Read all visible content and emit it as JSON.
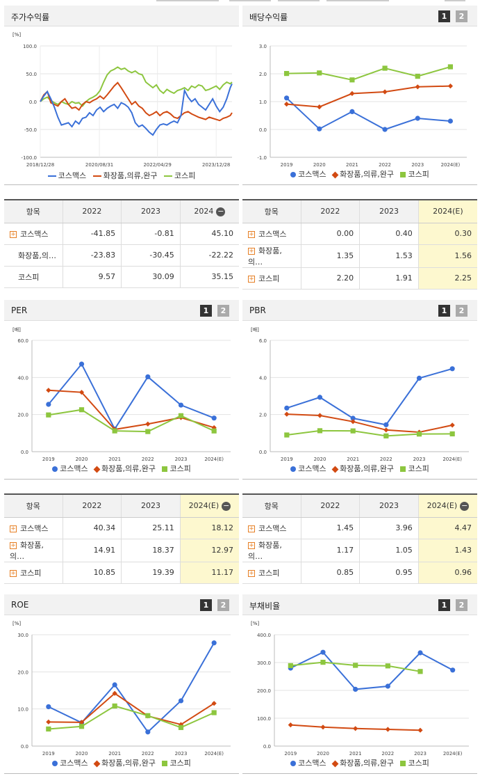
{
  "legend": {
    "s1": "코스맥스",
    "s2": "화장품,의류,완구",
    "s3": "코스피"
  },
  "colors": {
    "s1": "#3a70d8",
    "s2": "#d24a12",
    "s3": "#8dc63f"
  },
  "btn": {
    "one": "1",
    "two": "2"
  },
  "row_names": [
    "코스맥스",
    "화장품,의…",
    "코스피"
  ],
  "stock_return": {
    "title": "주가수익률",
    "unit": "[%]",
    "xticks": [
      "2018/12/28",
      "2020/08/31",
      "2022/04/29",
      "2023/12/28"
    ],
    "yticks": [
      "100.0",
      "50.0",
      "0.0",
      "-50.0",
      "-100.0"
    ]
  },
  "dividend": {
    "title": "배당수익률",
    "unit": "",
    "xticks": [
      "2019",
      "2020",
      "2021",
      "2022",
      "2023",
      "2024(E)"
    ],
    "yticks": [
      "3.0",
      "2.0",
      "1.0",
      "0.0",
      "-1.0"
    ]
  },
  "per": {
    "title": "PER",
    "unit": "[배]",
    "xticks": [
      "2019",
      "2020",
      "2021",
      "2022",
      "2023",
      "2024(E)"
    ],
    "yticks": [
      "60.0",
      "40.0",
      "20.0",
      "0.0"
    ]
  },
  "pbr": {
    "title": "PBR",
    "unit": "[배]",
    "xticks": [
      "2019",
      "2020",
      "2021",
      "2022",
      "2023",
      "2024(E)"
    ],
    "yticks": [
      "6.0",
      "4.0",
      "2.0",
      "0.0"
    ]
  },
  "roe": {
    "title": "ROE",
    "unit": "[%]",
    "xticks": [
      "2019",
      "2020",
      "2021",
      "2022",
      "2023",
      "2024(E)"
    ],
    "yticks": [
      "30.0",
      "20.0",
      "10.0",
      "0.0"
    ]
  },
  "debt": {
    "title": "부채비율",
    "unit": "[%]",
    "xticks": [
      "2019",
      "2020",
      "2021",
      "2022",
      "2023",
      "2024(E)"
    ],
    "yticks": [
      "400.0",
      "300.0",
      "200.0",
      "100.0",
      "0.0"
    ]
  },
  "tables": {
    "stock": {
      "head": [
        "항목",
        "2022",
        "2023",
        "2024"
      ],
      "minus": "−",
      "rows": [
        [
          "코스맥스",
          "-41.85",
          "-0.81",
          "45.10"
        ],
        [
          "화장품,의…",
          "-23.83",
          "-30.45",
          "-22.22"
        ],
        [
          "코스피",
          "9.57",
          "30.09",
          "35.15"
        ]
      ]
    },
    "dividend": {
      "head": [
        "항목",
        "2022",
        "2023",
        "2024(E)"
      ],
      "minus": "",
      "rows": [
        [
          "코스맥스",
          "0.00",
          "0.40",
          "0.30"
        ],
        [
          "화장품,의…",
          "1.35",
          "1.53",
          "1.56"
        ],
        [
          "코스피",
          "2.20",
          "1.91",
          "2.25"
        ]
      ]
    },
    "per": {
      "head": [
        "항목",
        "2022",
        "2023",
        "2024(E)"
      ],
      "minus": "−",
      "rows": [
        [
          "코스맥스",
          "40.34",
          "25.11",
          "18.12"
        ],
        [
          "화장품,의…",
          "14.91",
          "18.37",
          "12.97"
        ],
        [
          "코스피",
          "10.85",
          "19.39",
          "11.17"
        ]
      ]
    },
    "pbr": {
      "head": [
        "항목",
        "2022",
        "2023",
        "2024(E)"
      ],
      "minus": "−",
      "rows": [
        [
          "코스맥스",
          "1.45",
          "3.96",
          "4.47"
        ],
        [
          "화장품,의…",
          "1.17",
          "1.05",
          "1.43"
        ],
        [
          "코스피",
          "0.85",
          "0.95",
          "0.96"
        ]
      ]
    }
  },
  "chart_data": [
    {
      "id": "stock_return",
      "type": "line",
      "title": "주가수익률",
      "ylabel": "[%]",
      "ylim": [
        -100,
        100
      ],
      "xrange": [
        "2018/12/28",
        "2024/06"
      ],
      "series": [
        {
          "name": "코스맥스",
          "x": [
            0,
            0.1,
            0.2,
            0.3,
            0.4,
            0.5,
            0.6,
            0.7,
            0.8,
            0.9,
            1.0,
            1.1,
            1.2,
            1.3,
            1.4,
            1.5,
            1.6,
            1.7,
            1.8,
            1.9,
            2.0,
            2.1,
            2.2,
            2.3,
            2.4,
            2.5,
            2.6,
            2.7,
            2.8,
            2.9,
            3.0,
            3.1,
            3.2,
            3.3,
            3.4,
            3.5,
            3.6,
            3.7,
            3.8,
            3.9,
            4.0,
            4.1,
            4.2,
            4.3,
            4.4,
            4.5,
            4.6,
            4.7,
            4.8,
            4.9,
            5.0,
            5.1,
            5.2,
            5.3,
            5.4,
            5.45
          ],
          "y": [
            0,
            10,
            18,
            5,
            -10,
            -28,
            -42,
            -40,
            -38,
            -45,
            -35,
            -40,
            -30,
            -28,
            -20,
            -25,
            -15,
            -10,
            -18,
            -12,
            -8,
            -5,
            -12,
            -2,
            -5,
            -10,
            -20,
            -38,
            -45,
            -42,
            -48,
            -55,
            -60,
            -50,
            -42,
            -40,
            -42,
            -38,
            -35,
            -38,
            -25,
            20,
            8,
            0,
            5,
            -5,
            -10,
            -15,
            -5,
            5,
            -8,
            -18,
            -10,
            5,
            25,
            32
          ]
        },
        {
          "name": "화장품,의류,완구",
          "x": [
            0,
            0.1,
            0.2,
            0.3,
            0.4,
            0.5,
            0.6,
            0.7,
            0.8,
            0.9,
            1.0,
            1.1,
            1.2,
            1.3,
            1.4,
            1.5,
            1.6,
            1.7,
            1.8,
            1.9,
            2.0,
            2.1,
            2.2,
            2.3,
            2.4,
            2.5,
            2.6,
            2.7,
            2.8,
            2.9,
            3.0,
            3.1,
            3.2,
            3.3,
            3.4,
            3.5,
            3.6,
            3.7,
            3.8,
            3.9,
            4.0,
            4.1,
            4.2,
            4.3,
            4.4,
            4.5,
            4.6,
            4.7,
            4.8,
            4.9,
            5.0,
            5.1,
            5.2,
            5.3,
            5.4,
            5.45
          ],
          "y": [
            0,
            12,
            18,
            -2,
            -5,
            -8,
            0,
            5,
            -5,
            -12,
            -10,
            -15,
            -5,
            0,
            -2,
            2,
            5,
            10,
            5,
            12,
            20,
            28,
            34,
            25,
            15,
            5,
            -5,
            0,
            -8,
            -12,
            -20,
            -25,
            -22,
            -18,
            -25,
            -20,
            -18,
            -22,
            -28,
            -30,
            -25,
            -20,
            -18,
            -22,
            -25,
            -28,
            -30,
            -32,
            -28,
            -30,
            -32,
            -34,
            -30,
            -28,
            -25,
            -20
          ]
        },
        {
          "name": "코스피",
          "x": [
            0,
            0.1,
            0.2,
            0.3,
            0.4,
            0.5,
            0.6,
            0.7,
            0.8,
            0.9,
            1.0,
            1.1,
            1.2,
            1.3,
            1.4,
            1.5,
            1.6,
            1.7,
            1.8,
            1.9,
            2.0,
            2.1,
            2.2,
            2.3,
            2.4,
            2.5,
            2.6,
            2.7,
            2.8,
            2.9,
            3.0,
            3.1,
            3.2,
            3.3,
            3.4,
            3.5,
            3.6,
            3.7,
            3.8,
            3.9,
            4.0,
            4.1,
            4.2,
            4.3,
            4.4,
            4.5,
            4.6,
            4.7,
            4.8,
            4.9,
            5.0,
            5.1,
            5.2,
            5.3,
            5.4,
            5.45
          ],
          "y": [
            0,
            5,
            8,
            2,
            -2,
            -5,
            0,
            -3,
            -5,
            0,
            -3,
            -2,
            -8,
            0,
            5,
            8,
            12,
            20,
            35,
            48,
            55,
            58,
            62,
            58,
            60,
            55,
            52,
            55,
            50,
            48,
            35,
            30,
            25,
            30,
            20,
            15,
            22,
            18,
            15,
            20,
            22,
            25,
            20,
            28,
            25,
            30,
            28,
            20,
            22,
            25,
            28,
            22,
            30,
            35,
            32,
            35
          ]
        }
      ]
    },
    {
      "id": "dividend",
      "type": "line",
      "title": "배당수익률",
      "ylim": [
        -1,
        3
      ],
      "categories": [
        "2019",
        "2020",
        "2021",
        "2022",
        "2023",
        "2024(E)"
      ],
      "series": [
        {
          "name": "코스맥스",
          "values": [
            1.13,
            0.02,
            0.64,
            0.0,
            0.4,
            0.3
          ]
        },
        {
          "name": "화장품,의류,완구",
          "values": [
            0.91,
            0.81,
            1.29,
            1.35,
            1.53,
            1.56
          ]
        },
        {
          "name": "코스피",
          "values": [
            2.01,
            2.03,
            1.78,
            2.2,
            1.91,
            2.25
          ]
        }
      ]
    },
    {
      "id": "per",
      "type": "line",
      "title": "PER",
      "ylabel": "[배]",
      "ylim": [
        0,
        60
      ],
      "categories": [
        "2019",
        "2020",
        "2021",
        "2022",
        "2023",
        "2024(E)"
      ],
      "series": [
        {
          "name": "코스맥스",
          "values": [
            25.5,
            47.2,
            12.2,
            40.34,
            25.11,
            18.12
          ]
        },
        {
          "name": "화장품,의류,완구",
          "values": [
            33.1,
            32.0,
            12.0,
            14.91,
            18.37,
            12.97
          ]
        },
        {
          "name": "코스피",
          "values": [
            19.8,
            22.6,
            11.2,
            10.85,
            19.39,
            11.17
          ]
        }
      ]
    },
    {
      "id": "pbr",
      "type": "line",
      "title": "PBR",
      "ylabel": "[배]",
      "ylim": [
        0,
        6
      ],
      "categories": [
        "2019",
        "2020",
        "2021",
        "2022",
        "2023",
        "2024(E)"
      ],
      "series": [
        {
          "name": "코스맥스",
          "values": [
            2.35,
            2.93,
            1.8,
            1.45,
            3.96,
            4.47
          ]
        },
        {
          "name": "화장품,의류,완구",
          "values": [
            2.02,
            1.95,
            1.62,
            1.17,
            1.05,
            1.43
          ]
        },
        {
          "name": "코스피",
          "values": [
            0.9,
            1.13,
            1.12,
            0.85,
            0.95,
            0.96
          ]
        }
      ]
    },
    {
      "id": "roe",
      "type": "line",
      "title": "ROE",
      "ylabel": "[%]",
      "ylim": [
        0,
        30
      ],
      "categories": [
        "2019",
        "2020",
        "2021",
        "2022",
        "2023",
        "2024(E)"
      ],
      "series": [
        {
          "name": "코스맥스",
          "values": [
            10.6,
            6.3,
            16.5,
            3.8,
            12.2,
            27.8
          ]
        },
        {
          "name": "화장품,의류,완구",
          "values": [
            6.5,
            6.4,
            14.2,
            8.1,
            5.8,
            11.5
          ]
        },
        {
          "name": "코스피",
          "values": [
            4.6,
            5.3,
            10.8,
            8.2,
            5.0,
            9.0
          ]
        }
      ]
    },
    {
      "id": "debt",
      "type": "line",
      "title": "부채비율",
      "ylabel": "[%]",
      "ylim": [
        0,
        400
      ],
      "categories": [
        "2019",
        "2020",
        "2021",
        "2022",
        "2023",
        "2024(E)"
      ],
      "series": [
        {
          "name": "코스맥스",
          "values": [
            280,
            337,
            204,
            215,
            335,
            273
          ]
        },
        {
          "name": "화장품,의류,완구",
          "values": [
            76,
            68,
            63,
            60,
            57,
            null
          ]
        },
        {
          "name": "코스피",
          "values": [
            289,
            301,
            290,
            288,
            268,
            null
          ]
        }
      ]
    }
  ]
}
